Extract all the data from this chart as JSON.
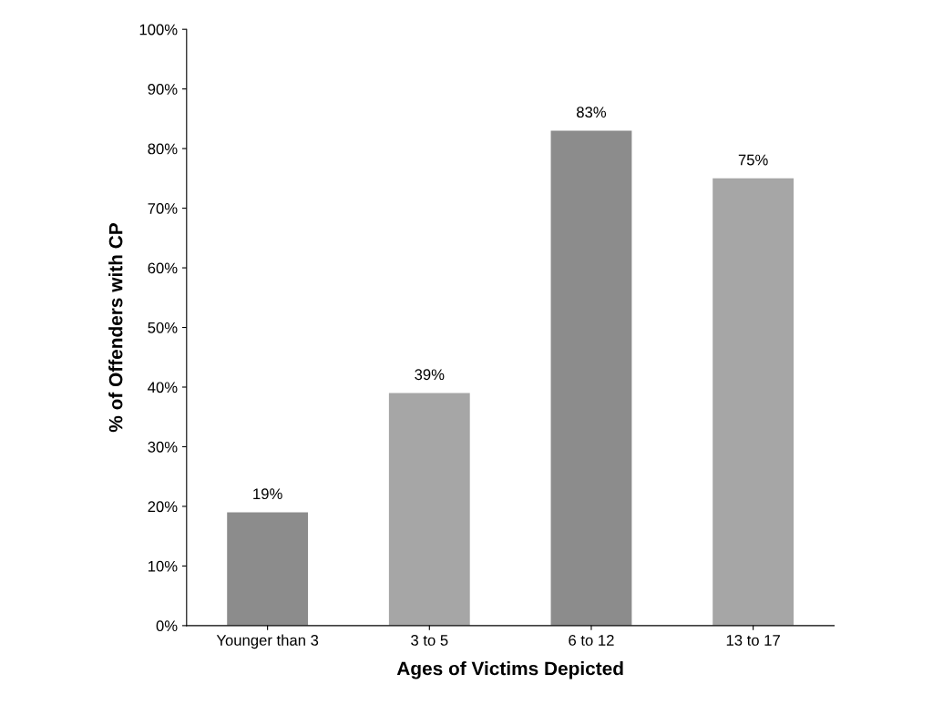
{
  "chart_data": {
    "type": "bar",
    "xlabel": "Ages of Victims Depicted",
    "ylabel": "% of Offenders with CP",
    "categories": [
      "Younger than 3",
      "3 to 5",
      "6 to 12",
      "13 to 17"
    ],
    "values": [
      19,
      39,
      83,
      75
    ],
    "colors": [
      "#8c8c8c",
      "#a6a6a6",
      "#8c8c8c",
      "#a6a6a6"
    ],
    "value_labels": [
      "19%",
      "39%",
      "83%",
      "75%"
    ],
    "ylim": [
      0,
      100
    ],
    "yticks": [
      {
        "value": 0,
        "label": "0%"
      },
      {
        "value": 10,
        "label": "10%"
      },
      {
        "value": 20,
        "label": "20%"
      },
      {
        "value": 30,
        "label": "30%"
      },
      {
        "value": 40,
        "label": "40%"
      },
      {
        "value": 50,
        "label": "50%"
      },
      {
        "value": 60,
        "label": "60%"
      },
      {
        "value": 70,
        "label": "70%"
      },
      {
        "value": 80,
        "label": "80%"
      },
      {
        "value": 90,
        "label": "90%"
      },
      {
        "value": 100,
        "label": "100%"
      }
    ],
    "grid": false
  }
}
